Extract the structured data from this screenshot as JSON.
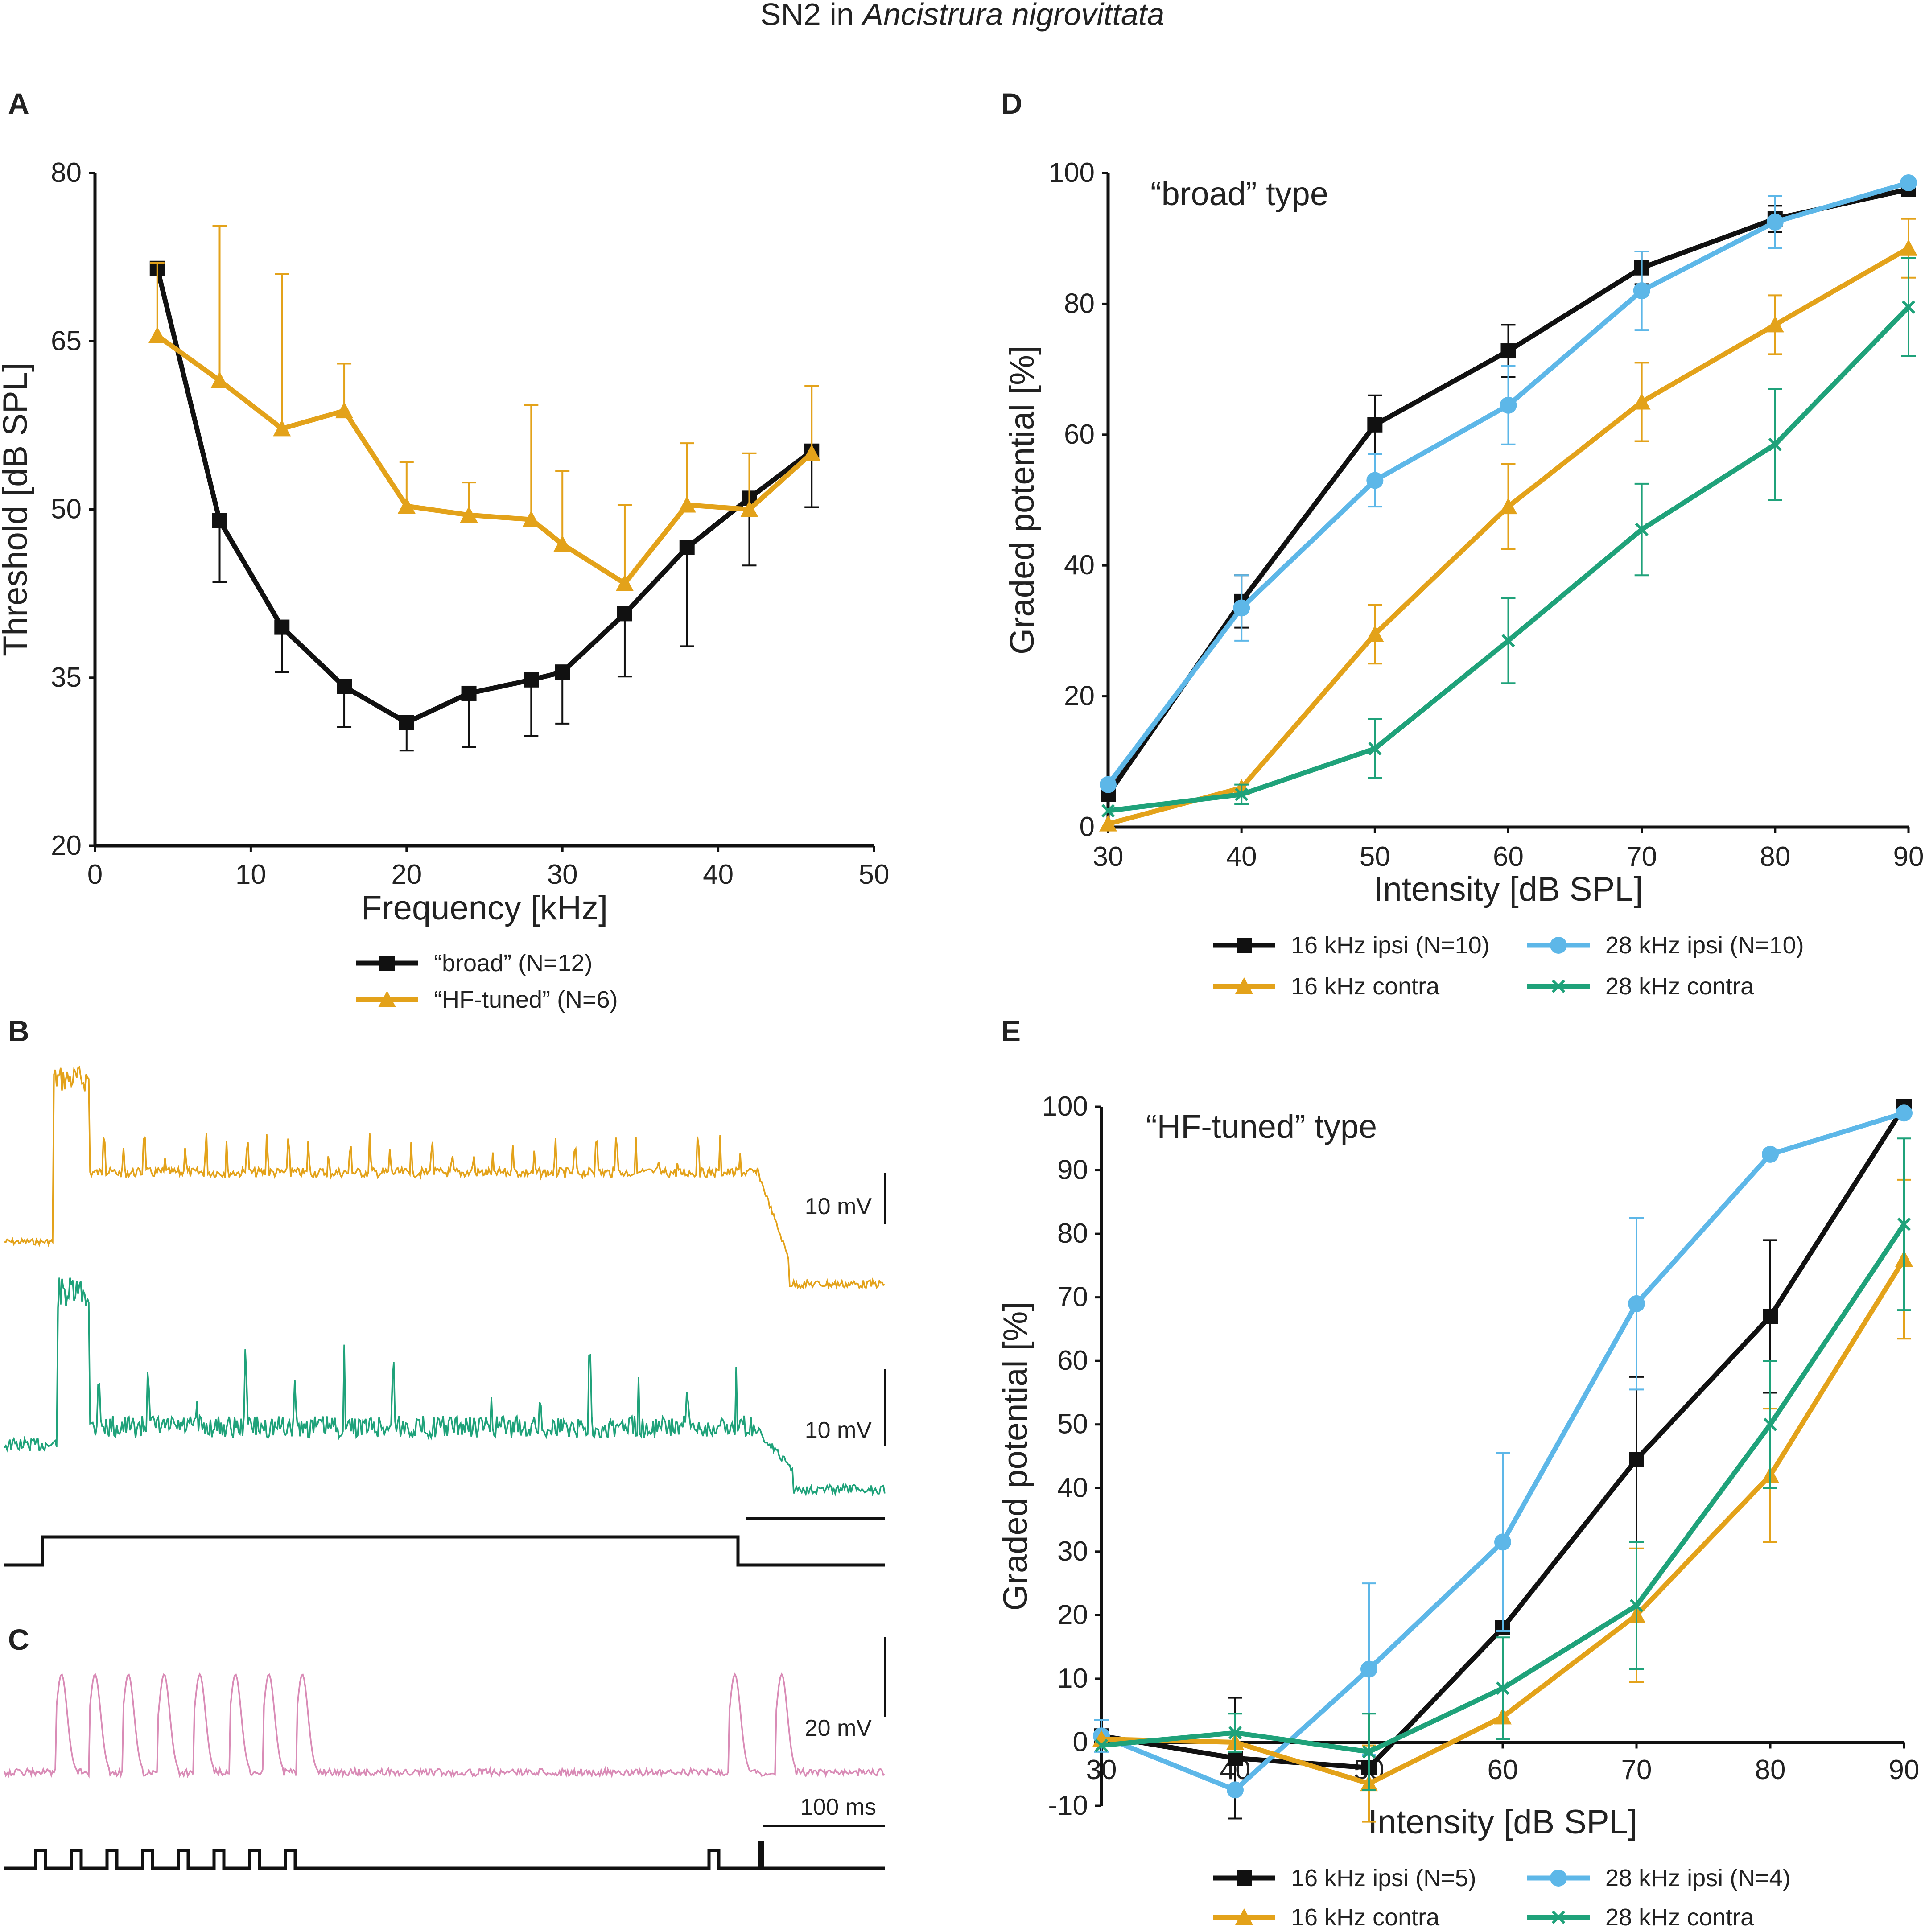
{
  "figure": {
    "title_prefix": "SN2 in ",
    "title_species": "Ancistrura nigrovittata"
  },
  "colors": {
    "black": "#111111",
    "orange": "#E3A21A",
    "blue": "#5DB7E8",
    "green": "#1FA27A",
    "pink": "#D98BB6"
  },
  "panels": {
    "A": {
      "label": "A"
    },
    "B": {
      "label": "B",
      "scale_top": "10 mV",
      "scale_mid": "10 mV"
    },
    "C": {
      "label": "C",
      "scale_v": "20 mV",
      "scale_t": "100 ms"
    },
    "D": {
      "label": "D"
    },
    "E": {
      "label": "E"
    }
  },
  "chart_data": [
    {
      "id": "A",
      "type": "line",
      "title": "",
      "xlabel": "Frequency [kHz]",
      "ylabel": "Threshold [dB SPL]",
      "xlim": [
        0,
        50
      ],
      "ylim": [
        20,
        80
      ],
      "xticks": [
        "0",
        "10",
        "20",
        "30",
        "40",
        "50"
      ],
      "yticks": [
        "20",
        "35",
        "50",
        "65",
        "80"
      ],
      "x": [
        4,
        8,
        12,
        16,
        20,
        24,
        28,
        30,
        34,
        38,
        42,
        46
      ],
      "series": [
        {
          "name": "“broad” (N=12)",
          "marker": "square",
          "color": "#111111",
          "values": [
            71.5,
            49,
            39.5,
            34.2,
            31,
            33.6,
            34.8,
            35.5,
            40.7,
            46.6,
            51,
            55.2
          ],
          "error_up": [
            0,
            0,
            0,
            0,
            0,
            0,
            0,
            0,
            0,
            0,
            0,
            0
          ],
          "error_down": [
            0,
            5.5,
            4,
            3.6,
            2.5,
            4.8,
            5,
            4.6,
            5.6,
            8.8,
            6,
            5
          ]
        },
        {
          "name": "“HF-tuned” (N=6)",
          "marker": "triangle",
          "color": "#E3A21A",
          "values": [
            65.5,
            61.5,
            57.2,
            58.8,
            50.3,
            49.5,
            49.1,
            46.9,
            43.4,
            50.4,
            50,
            55
          ],
          "error_up": [
            6.5,
            13.8,
            13.8,
            4.2,
            3.9,
            2.9,
            10.2,
            6.5,
            7,
            5.5,
            5,
            6
          ],
          "error_down": [
            0,
            0,
            0,
            0,
            0,
            0,
            0,
            0,
            0,
            0,
            0,
            0
          ]
        }
      ]
    },
    {
      "id": "D",
      "type": "line",
      "title": "“broad” type",
      "xlabel": "Intensity [dB SPL]",
      "ylabel": "Graded potential [%]",
      "xlim": [
        30,
        90
      ],
      "ylim": [
        0,
        100
      ],
      "xticks": [
        "30",
        "40",
        "50",
        "60",
        "70",
        "80",
        "90"
      ],
      "yticks": [
        "0",
        "20",
        "40",
        "60",
        "80",
        "100"
      ],
      "x": [
        30,
        40,
        50,
        60,
        70,
        80,
        90
      ],
      "series": [
        {
          "name": "16 kHz ipsi (N=10)",
          "marker": "square",
          "color": "#111111",
          "values": [
            5,
            34.5,
            61.5,
            72.8,
            85.5,
            93,
            97.5
          ],
          "error": [
            0,
            4,
            4.5,
            4,
            2.5,
            2,
            0
          ]
        },
        {
          "name": "28 kHz ipsi (N=10)",
          "marker": "circle",
          "color": "#5DB7E8",
          "values": [
            6.5,
            33.5,
            53,
            64.5,
            82,
            92.5,
            98.5
          ],
          "error": [
            0,
            5,
            4,
            6,
            6,
            4,
            0
          ]
        },
        {
          "name": "16 kHz contra",
          "marker": "triangle",
          "color": "#E3A21A",
          "values": [
            0.5,
            6,
            29.5,
            49,
            65,
            76.8,
            88.5
          ],
          "error": [
            0,
            0,
            4.5,
            6.5,
            6,
            4.5,
            4.5
          ]
        },
        {
          "name": "28 kHz contra",
          "marker": "cross",
          "color": "#1FA27A",
          "values": [
            2.5,
            5,
            12,
            28.5,
            45.5,
            58.5,
            79.5
          ],
          "error": [
            0,
            1.5,
            4.5,
            6.5,
            7,
            8.5,
            7.5
          ]
        }
      ]
    },
    {
      "id": "E",
      "type": "line",
      "title": "“HF-tuned” type",
      "xlabel": "Intensity [dB SPL]",
      "ylabel": "Graded potential [%]",
      "xlim": [
        30,
        90
      ],
      "ylim": [
        -10,
        100
      ],
      "xticks": [
        "30",
        "40",
        "50",
        "60",
        "70",
        "80",
        "90"
      ],
      "yticks": [
        "-10",
        "0",
        "10",
        "20",
        "30",
        "40",
        "50",
        "60",
        "70",
        "80",
        "90",
        "100"
      ],
      "x": [
        30,
        40,
        50,
        60,
        70,
        80,
        90
      ],
      "series": [
        {
          "name": "16 kHz ipsi (N=5)",
          "marker": "square",
          "color": "#111111",
          "values": [
            1,
            -2.5,
            -4,
            18,
            44.5,
            67,
            100
          ],
          "error": [
            0,
            9.5,
            0,
            0,
            13,
            12,
            0
          ]
        },
        {
          "name": "28 kHz ipsi (N=4)",
          "marker": "circle",
          "color": "#5DB7E8",
          "values": [
            1,
            -7.5,
            11.5,
            31.5,
            69,
            92.5,
            99
          ],
          "error": [
            2.5,
            0,
            13.5,
            14,
            13.5,
            0,
            0
          ]
        },
        {
          "name": "16 kHz contra",
          "marker": "triangle",
          "color": "#E3A21A",
          "values": [
            0.5,
            0,
            -6.5,
            4,
            20,
            42,
            76
          ],
          "error": [
            0,
            0,
            6,
            0,
            10.5,
            10.5,
            12.5
          ]
        },
        {
          "name": "28 kHz contra",
          "marker": "cross",
          "color": "#1FA27A",
          "values": [
            -0.5,
            1.5,
            -1.5,
            8.5,
            21.5,
            50,
            81.5
          ],
          "error": [
            0,
            3,
            6,
            8,
            10,
            10,
            13.5
          ]
        }
      ]
    }
  ]
}
